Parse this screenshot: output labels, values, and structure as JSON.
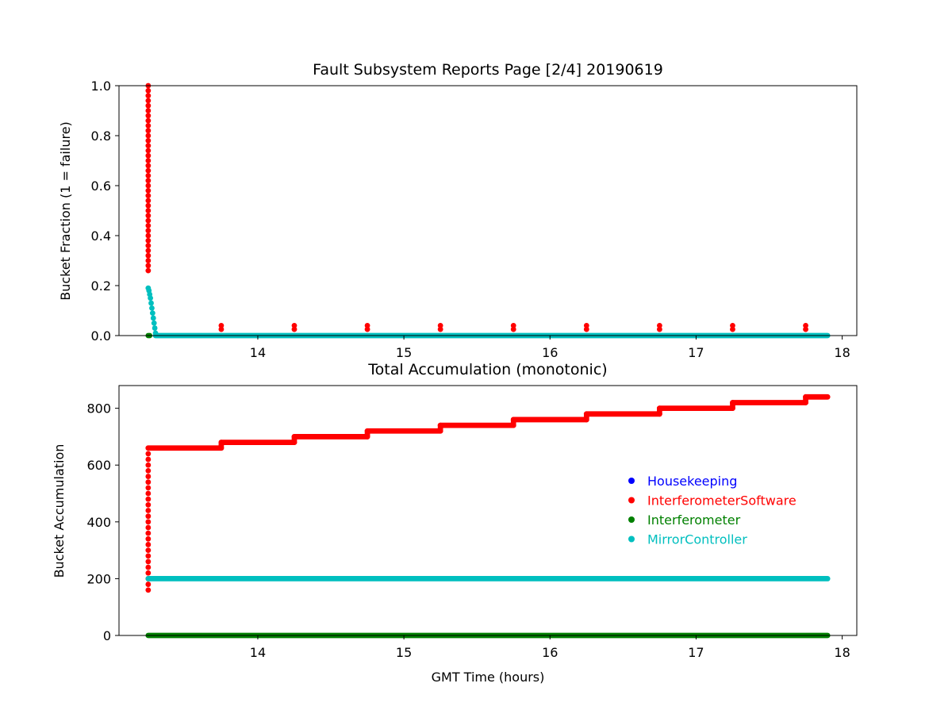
{
  "chart_data": [
    {
      "type": "scatter",
      "title": "Fault Subsystem Reports Page [2/4] 20190619",
      "xlabel": "",
      "ylabel": "Bucket Fraction (1 = failure)",
      "xlim": [
        13.05,
        18.1
      ],
      "ylim": [
        0,
        1.0
      ],
      "xticks": [
        14,
        15,
        16,
        17,
        18
      ],
      "yticks": [
        0.0,
        0.2,
        0.4,
        0.6,
        0.8,
        1.0
      ],
      "ytick_labels": [
        "0.0",
        "0.2",
        "0.4",
        "0.6",
        "0.8",
        "1.0"
      ],
      "grid": false,
      "series": [
        {
          "name": "InterferometerSoftware",
          "color": "#ff0000",
          "points": [
            [
              13.25,
              1.0
            ],
            [
              13.25,
              0.98
            ],
            [
              13.25,
              0.96
            ],
            [
              13.25,
              0.94
            ],
            [
              13.25,
              0.92
            ],
            [
              13.25,
              0.9
            ],
            [
              13.25,
              0.88
            ],
            [
              13.25,
              0.86
            ],
            [
              13.25,
              0.84
            ],
            [
              13.25,
              0.82
            ],
            [
              13.25,
              0.8
            ],
            [
              13.25,
              0.78
            ],
            [
              13.25,
              0.76
            ],
            [
              13.25,
              0.74
            ],
            [
              13.25,
              0.72
            ],
            [
              13.25,
              0.7
            ],
            [
              13.25,
              0.68
            ],
            [
              13.25,
              0.66
            ],
            [
              13.25,
              0.64
            ],
            [
              13.25,
              0.62
            ],
            [
              13.25,
              0.6
            ],
            [
              13.25,
              0.58
            ],
            [
              13.25,
              0.56
            ],
            [
              13.25,
              0.54
            ],
            [
              13.25,
              0.52
            ],
            [
              13.25,
              0.5
            ],
            [
              13.25,
              0.48
            ],
            [
              13.25,
              0.46
            ],
            [
              13.25,
              0.44
            ],
            [
              13.25,
              0.42
            ],
            [
              13.25,
              0.4
            ],
            [
              13.25,
              0.38
            ],
            [
              13.25,
              0.36
            ],
            [
              13.25,
              0.34
            ],
            [
              13.25,
              0.32
            ],
            [
              13.25,
              0.3
            ],
            [
              13.25,
              0.28
            ],
            [
              13.25,
              0.26
            ],
            [
              13.75,
              0.04
            ],
            [
              13.75,
              0.025
            ],
            [
              14.25,
              0.04
            ],
            [
              14.25,
              0.025
            ],
            [
              14.75,
              0.04
            ],
            [
              14.75,
              0.025
            ],
            [
              15.25,
              0.04
            ],
            [
              15.25,
              0.025
            ],
            [
              15.75,
              0.04
            ],
            [
              15.75,
              0.025
            ],
            [
              16.25,
              0.04
            ],
            [
              16.25,
              0.025
            ],
            [
              16.75,
              0.04
            ],
            [
              16.75,
              0.025
            ],
            [
              17.25,
              0.04
            ],
            [
              17.25,
              0.025
            ],
            [
              17.75,
              0.04
            ],
            [
              17.75,
              0.025
            ]
          ]
        },
        {
          "name": "Interferometer",
          "color": "#008000",
          "points": [
            [
              13.25,
              0.0
            ],
            [
              13.26,
              0.0
            ]
          ]
        },
        {
          "name": "MirrorController",
          "color": "#00bfbf",
          "points": [
            [
              13.25,
              0.19
            ],
            [
              13.255,
              0.18
            ],
            [
              13.26,
              0.165
            ],
            [
              13.265,
              0.15
            ],
            [
              13.27,
              0.13
            ],
            [
              13.275,
              0.11
            ],
            [
              13.28,
              0.09
            ],
            [
              13.285,
              0.07
            ],
            [
              13.29,
              0.05
            ],
            [
              13.295,
              0.03
            ],
            [
              13.3,
              0.01
            ]
          ],
          "flat_segment": {
            "x_start": 13.3,
            "x_end": 17.9,
            "y": 0.0
          }
        }
      ]
    },
    {
      "type": "scatter",
      "title": "Total Accumulation (monotonic)",
      "xlabel": "GMT Time (hours)",
      "ylabel": "Bucket Accumulation",
      "xlim": [
        13.05,
        18.1
      ],
      "ylim": [
        0,
        880
      ],
      "xticks": [
        14,
        15,
        16,
        17,
        18
      ],
      "yticks": [
        0,
        200,
        400,
        600,
        800
      ],
      "grid": false,
      "legend_position": "center-right",
      "legend": [
        {
          "label": "Housekeeping",
          "color": "#0000ff"
        },
        {
          "label": "InterferometerSoftware",
          "color": "#ff0000"
        },
        {
          "label": "Interferometer",
          "color": "#008000"
        },
        {
          "label": "MirrorController",
          "color": "#00bfbf"
        }
      ],
      "series": [
        {
          "name": "InterferometerSoftware",
          "color": "#ff0000",
          "rise": {
            "x": 13.25,
            "y_start": 160,
            "y_end": 660,
            "step": 20
          },
          "steps": [
            {
              "x_start": 13.25,
              "x_end": 13.75,
              "y": 660
            },
            {
              "x_start": 13.75,
              "x_end": 14.25,
              "y": 680
            },
            {
              "x_start": 14.25,
              "x_end": 14.75,
              "y": 700
            },
            {
              "x_start": 14.75,
              "x_end": 15.25,
              "y": 720
            },
            {
              "x_start": 15.25,
              "x_end": 15.75,
              "y": 740
            },
            {
              "x_start": 15.75,
              "x_end": 16.25,
              "y": 760
            },
            {
              "x_start": 16.25,
              "x_end": 16.75,
              "y": 780
            },
            {
              "x_start": 16.75,
              "x_end": 17.25,
              "y": 800
            },
            {
              "x_start": 17.25,
              "x_end": 17.75,
              "y": 820
            },
            {
              "x_start": 17.75,
              "x_end": 17.9,
              "y": 840
            }
          ]
        },
        {
          "name": "MirrorController",
          "color": "#00bfbf",
          "steps": [
            {
              "x_start": 13.25,
              "x_end": 17.9,
              "y": 200
            }
          ]
        },
        {
          "name": "Interferometer",
          "color": "#008000",
          "steps": [
            {
              "x_start": 13.25,
              "x_end": 17.9,
              "y": 0
            }
          ]
        }
      ]
    }
  ]
}
